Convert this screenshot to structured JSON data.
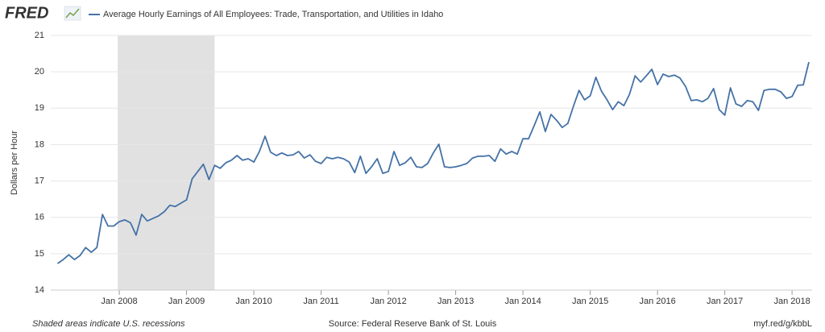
{
  "chart_data": {
    "type": "line",
    "logo": "FRED",
    "title": "Average Hourly Earnings of All Employees: Trade, Transportation, and Utilities in Idaho",
    "y_label": "Dollars per Hour",
    "note": "Shaded areas indicate U.S. recessions",
    "source": "Source: Federal Reserve Bank of St. Louis",
    "link": "myf.red/g/kbbL",
    "recession": {
      "start": "2007-12",
      "end": "2009-06"
    },
    "grid": true,
    "x": [
      "2007-02",
      "2007-03",
      "2007-04",
      "2007-05",
      "2007-06",
      "2007-07",
      "2007-08",
      "2007-09",
      "2007-10",
      "2007-11",
      "2007-12",
      "2008-01",
      "2008-02",
      "2008-03",
      "2008-04",
      "2008-05",
      "2008-06",
      "2008-07",
      "2008-08",
      "2008-09",
      "2008-10",
      "2008-11",
      "2008-12",
      "2009-01",
      "2009-02",
      "2009-03",
      "2009-04",
      "2009-05",
      "2009-06",
      "2009-07",
      "2009-08",
      "2009-09",
      "2009-10",
      "2009-11",
      "2009-12",
      "2010-01",
      "2010-02",
      "2010-03",
      "2010-04",
      "2010-05",
      "2010-06",
      "2010-07",
      "2010-08",
      "2010-09",
      "2010-10",
      "2010-11",
      "2010-12",
      "2011-01",
      "2011-02",
      "2011-03",
      "2011-04",
      "2011-05",
      "2011-06",
      "2011-07",
      "2011-08",
      "2011-09",
      "2011-10",
      "2011-11",
      "2011-12",
      "2012-01",
      "2012-02",
      "2012-03",
      "2012-04",
      "2012-05",
      "2012-06",
      "2012-07",
      "2012-08",
      "2012-09",
      "2012-10",
      "2012-11",
      "2012-12",
      "2013-01",
      "2013-02",
      "2013-03",
      "2013-04",
      "2013-05",
      "2013-06",
      "2013-07",
      "2013-08",
      "2013-09",
      "2013-10",
      "2013-11",
      "2013-12",
      "2014-01",
      "2014-02",
      "2014-03",
      "2014-04",
      "2014-05",
      "2014-06",
      "2014-07",
      "2014-08",
      "2014-09",
      "2014-10",
      "2014-11",
      "2014-12",
      "2015-01",
      "2015-02",
      "2015-03",
      "2015-04",
      "2015-05",
      "2015-06",
      "2015-07",
      "2015-08",
      "2015-09",
      "2015-10",
      "2015-11",
      "2015-12",
      "2016-01",
      "2016-02",
      "2016-03",
      "2016-04",
      "2016-05",
      "2016-06",
      "2016-07",
      "2016-08",
      "2016-09",
      "2016-10",
      "2016-11",
      "2016-12",
      "2017-01",
      "2017-02",
      "2017-03",
      "2017-04",
      "2017-05",
      "2017-06",
      "2017-07",
      "2017-08",
      "2017-09",
      "2017-10",
      "2017-11",
      "2017-12",
      "2018-01",
      "2018-02",
      "2018-03",
      "2018-04"
    ],
    "series": [
      {
        "name": "Average Hourly Earnings of All Employees: Trade, Transportation, and Utilities in Idaho",
        "color": "#4572a7",
        "values": [
          14.73,
          14.84,
          14.97,
          14.84,
          14.95,
          15.17,
          15.04,
          15.17,
          16.08,
          15.76,
          15.76,
          15.88,
          15.93,
          15.85,
          15.51,
          16.08,
          15.9,
          15.97,
          16.04,
          16.15,
          16.33,
          16.3,
          16.39,
          16.48,
          17.06,
          17.26,
          17.46,
          17.04,
          17.43,
          17.35,
          17.5,
          17.57,
          17.7,
          17.57,
          17.61,
          17.52,
          17.81,
          18.23,
          17.79,
          17.7,
          17.77,
          17.7,
          17.72,
          17.81,
          17.63,
          17.72,
          17.54,
          17.48,
          17.65,
          17.61,
          17.65,
          17.61,
          17.52,
          17.23,
          17.68,
          17.21,
          17.39,
          17.61,
          17.21,
          17.26,
          17.81,
          17.43,
          17.5,
          17.65,
          17.39,
          17.37,
          17.48,
          17.77,
          18.01,
          17.39,
          17.37,
          17.39,
          17.43,
          17.48,
          17.63,
          17.68,
          17.68,
          17.7,
          17.54,
          17.88,
          17.74,
          17.81,
          17.74,
          18.16,
          18.16,
          18.52,
          18.9,
          18.36,
          18.83,
          18.67,
          18.47,
          18.58,
          19.05,
          19.49,
          19.23,
          19.34,
          19.85,
          19.47,
          19.23,
          18.96,
          19.18,
          19.07,
          19.38,
          19.89,
          19.72,
          19.89,
          20.07,
          19.65,
          19.94,
          19.87,
          19.91,
          19.83,
          19.6,
          19.21,
          19.23,
          19.18,
          19.27,
          19.54,
          18.96,
          18.81,
          19.56,
          19.12,
          19.05,
          19.21,
          19.18,
          18.94,
          19.49,
          19.52,
          19.52,
          19.45,
          19.27,
          19.32,
          19.63,
          19.64,
          20.27
        ]
      }
    ],
    "ylim": [
      14,
      21
    ],
    "yticks": [
      14,
      15,
      16,
      17,
      18,
      19,
      20,
      21
    ],
    "xticks": [
      {
        "value": "2008-01",
        "label": "Jan 2008"
      },
      {
        "value": "2009-01",
        "label": "Jan 2009"
      },
      {
        "value": "2010-01",
        "label": "Jan 2010"
      },
      {
        "value": "2011-01",
        "label": "Jan 2011"
      },
      {
        "value": "2012-01",
        "label": "Jan 2012"
      },
      {
        "value": "2013-01",
        "label": "Jan 2013"
      },
      {
        "value": "2014-01",
        "label": "Jan 2014"
      },
      {
        "value": "2015-01",
        "label": "Jan 2015"
      },
      {
        "value": "2016-01",
        "label": "Jan 2016"
      },
      {
        "value": "2017-01",
        "label": "Jan 2017"
      },
      {
        "value": "2018-01",
        "label": "Jan 2018"
      }
    ]
  }
}
